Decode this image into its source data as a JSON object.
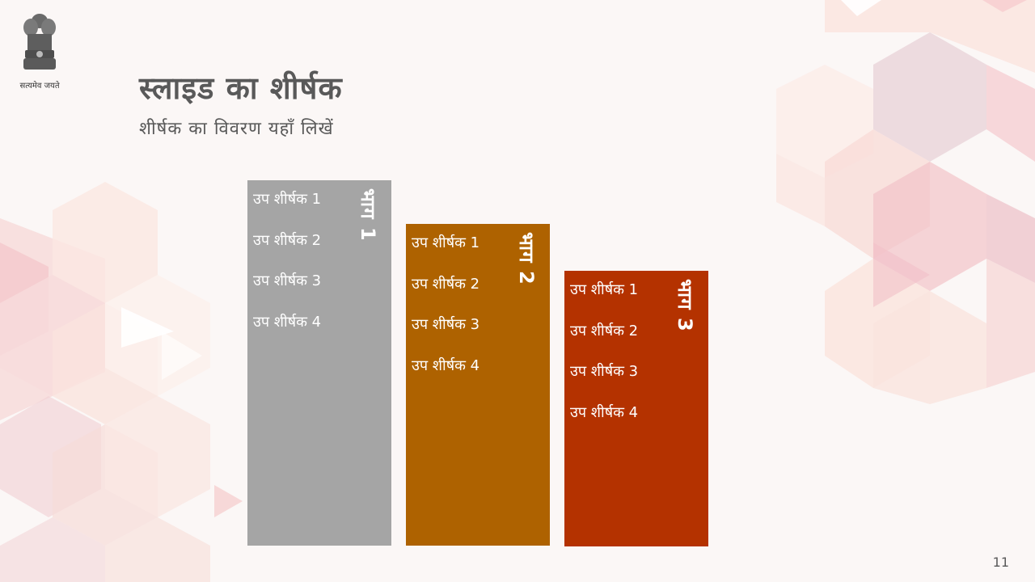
{
  "emblem": {
    "caption": "सत्यमेव जयते"
  },
  "slide": {
    "title": "स्लाइड का शीर्षक",
    "subtitle": "शीर्षक का विवरण यहाँ लिखें"
  },
  "columns": [
    {
      "label": "भाग 1",
      "color": "#a5a5a5",
      "items": [
        "उप शीर्षक 1",
        "उप शीर्षक 2",
        "उप शीर्षक 3",
        "उप शीर्षक 4"
      ]
    },
    {
      "label": "भाग 2",
      "color": "#ae6200",
      "items": [
        "उप शीर्षक 1",
        "उप शीर्षक 2",
        "उप शीर्षक 3",
        "उप शीर्षक 4"
      ]
    },
    {
      "label": "भाग 3",
      "color": "#b43200",
      "items": [
        "उप शीर्षक 1",
        "उप शीर्षक 2",
        "उप शीर्षक 3",
        "उप शीर्षक 4"
      ]
    }
  ],
  "page_number": "11"
}
